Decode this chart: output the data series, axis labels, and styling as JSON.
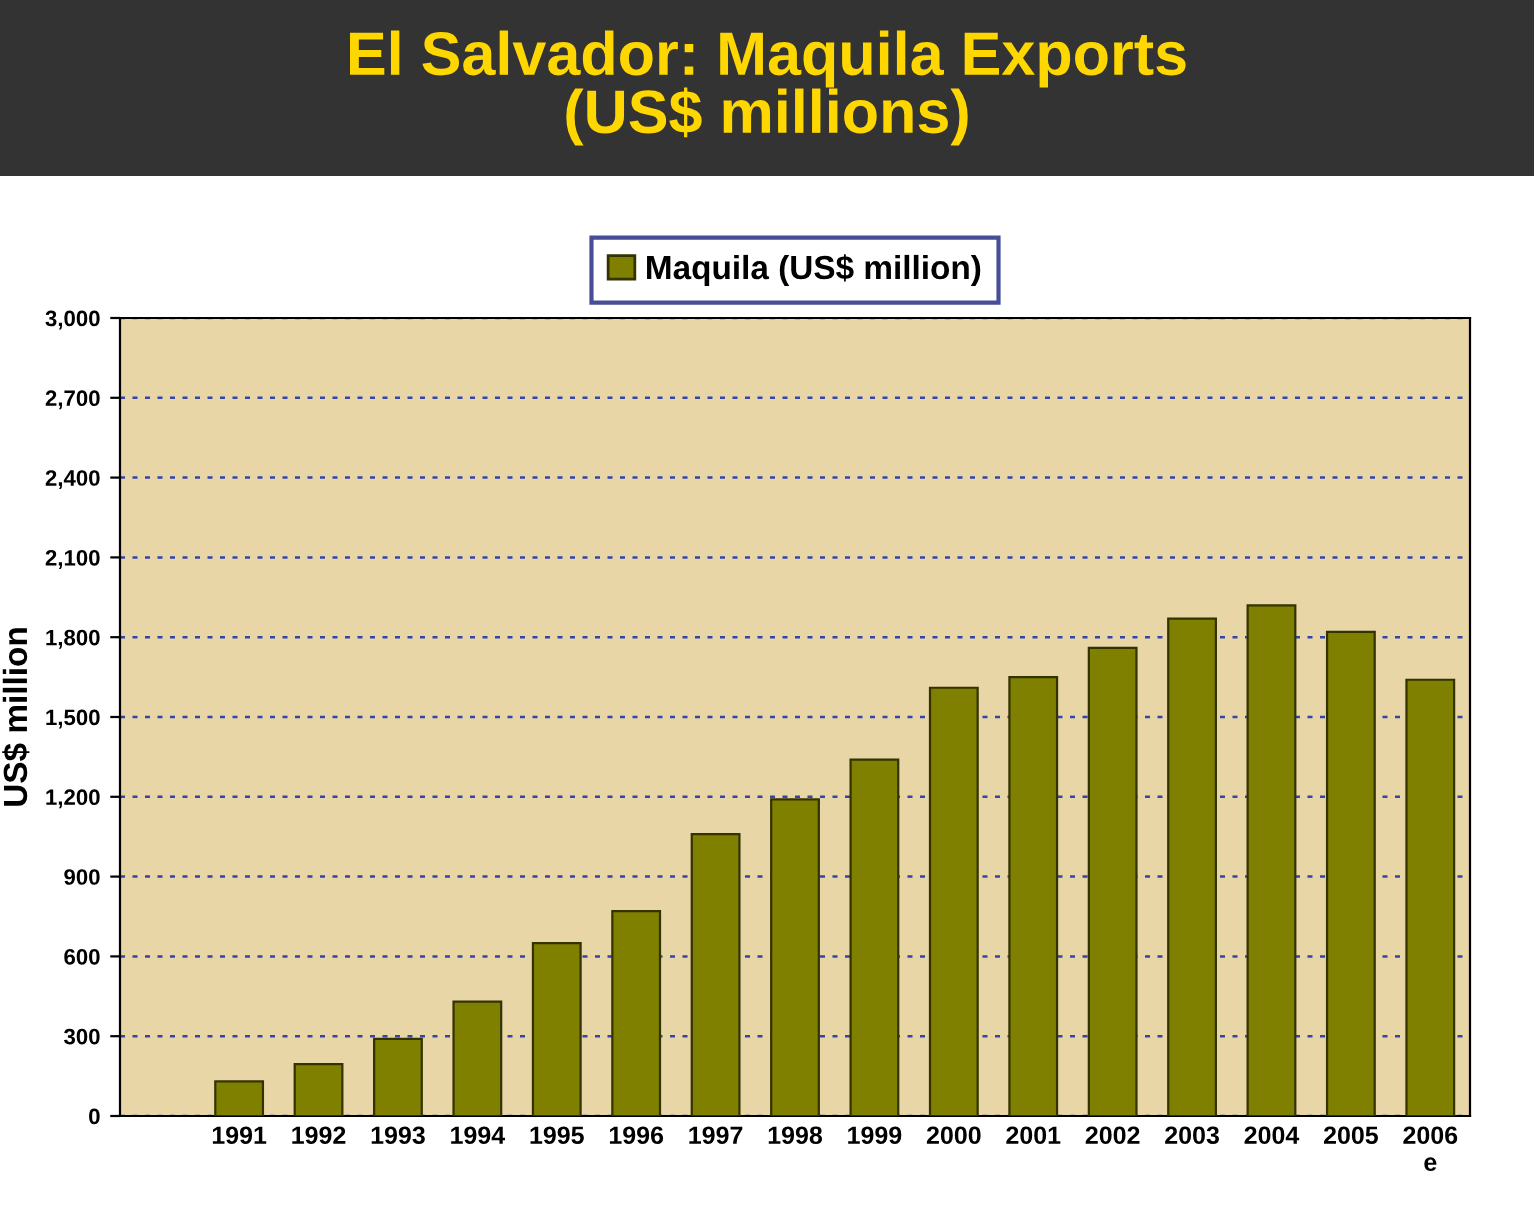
{
  "chart_data": {
    "type": "bar",
    "title": "El Salvador: Maquila Exports\n(US$ millions)",
    "ylabel": "US$ million",
    "categories": [
      null,
      "1991",
      "1992",
      "1993",
      "1994",
      "1995",
      "1996",
      "1997",
      "1998",
      "1999",
      "2000",
      "2001",
      "2002",
      "2003",
      "2004",
      "2005",
      "2006\ne"
    ],
    "series": [
      {
        "name": "Maquila (US$ million)",
        "color": "#808000",
        "values": [
          null,
          130,
          195,
          290,
          430,
          650,
          770,
          1060,
          1190,
          1340,
          1610,
          1650,
          1760,
          1870,
          1920,
          1820,
          1640
        ]
      }
    ],
    "ylim": [
      0,
      3000
    ],
    "yticks": [
      {
        "value": 0,
        "label": "0"
      },
      {
        "value": 300,
        "label": "300"
      },
      {
        "value": 600,
        "label": "600"
      },
      {
        "value": 900,
        "label": "900"
      },
      {
        "value": 1200,
        "label": "1,200"
      },
      {
        "value": 1500,
        "label": "1,500"
      },
      {
        "value": 1800,
        "label": "1,800"
      },
      {
        "value": 2100,
        "label": "2,100"
      },
      {
        "value": 2400,
        "label": "2,400"
      },
      {
        "value": 2700,
        "label": "2,700"
      },
      {
        "value": 3000,
        "label": "3,000"
      }
    ],
    "grid": "y",
    "legend": "top"
  }
}
